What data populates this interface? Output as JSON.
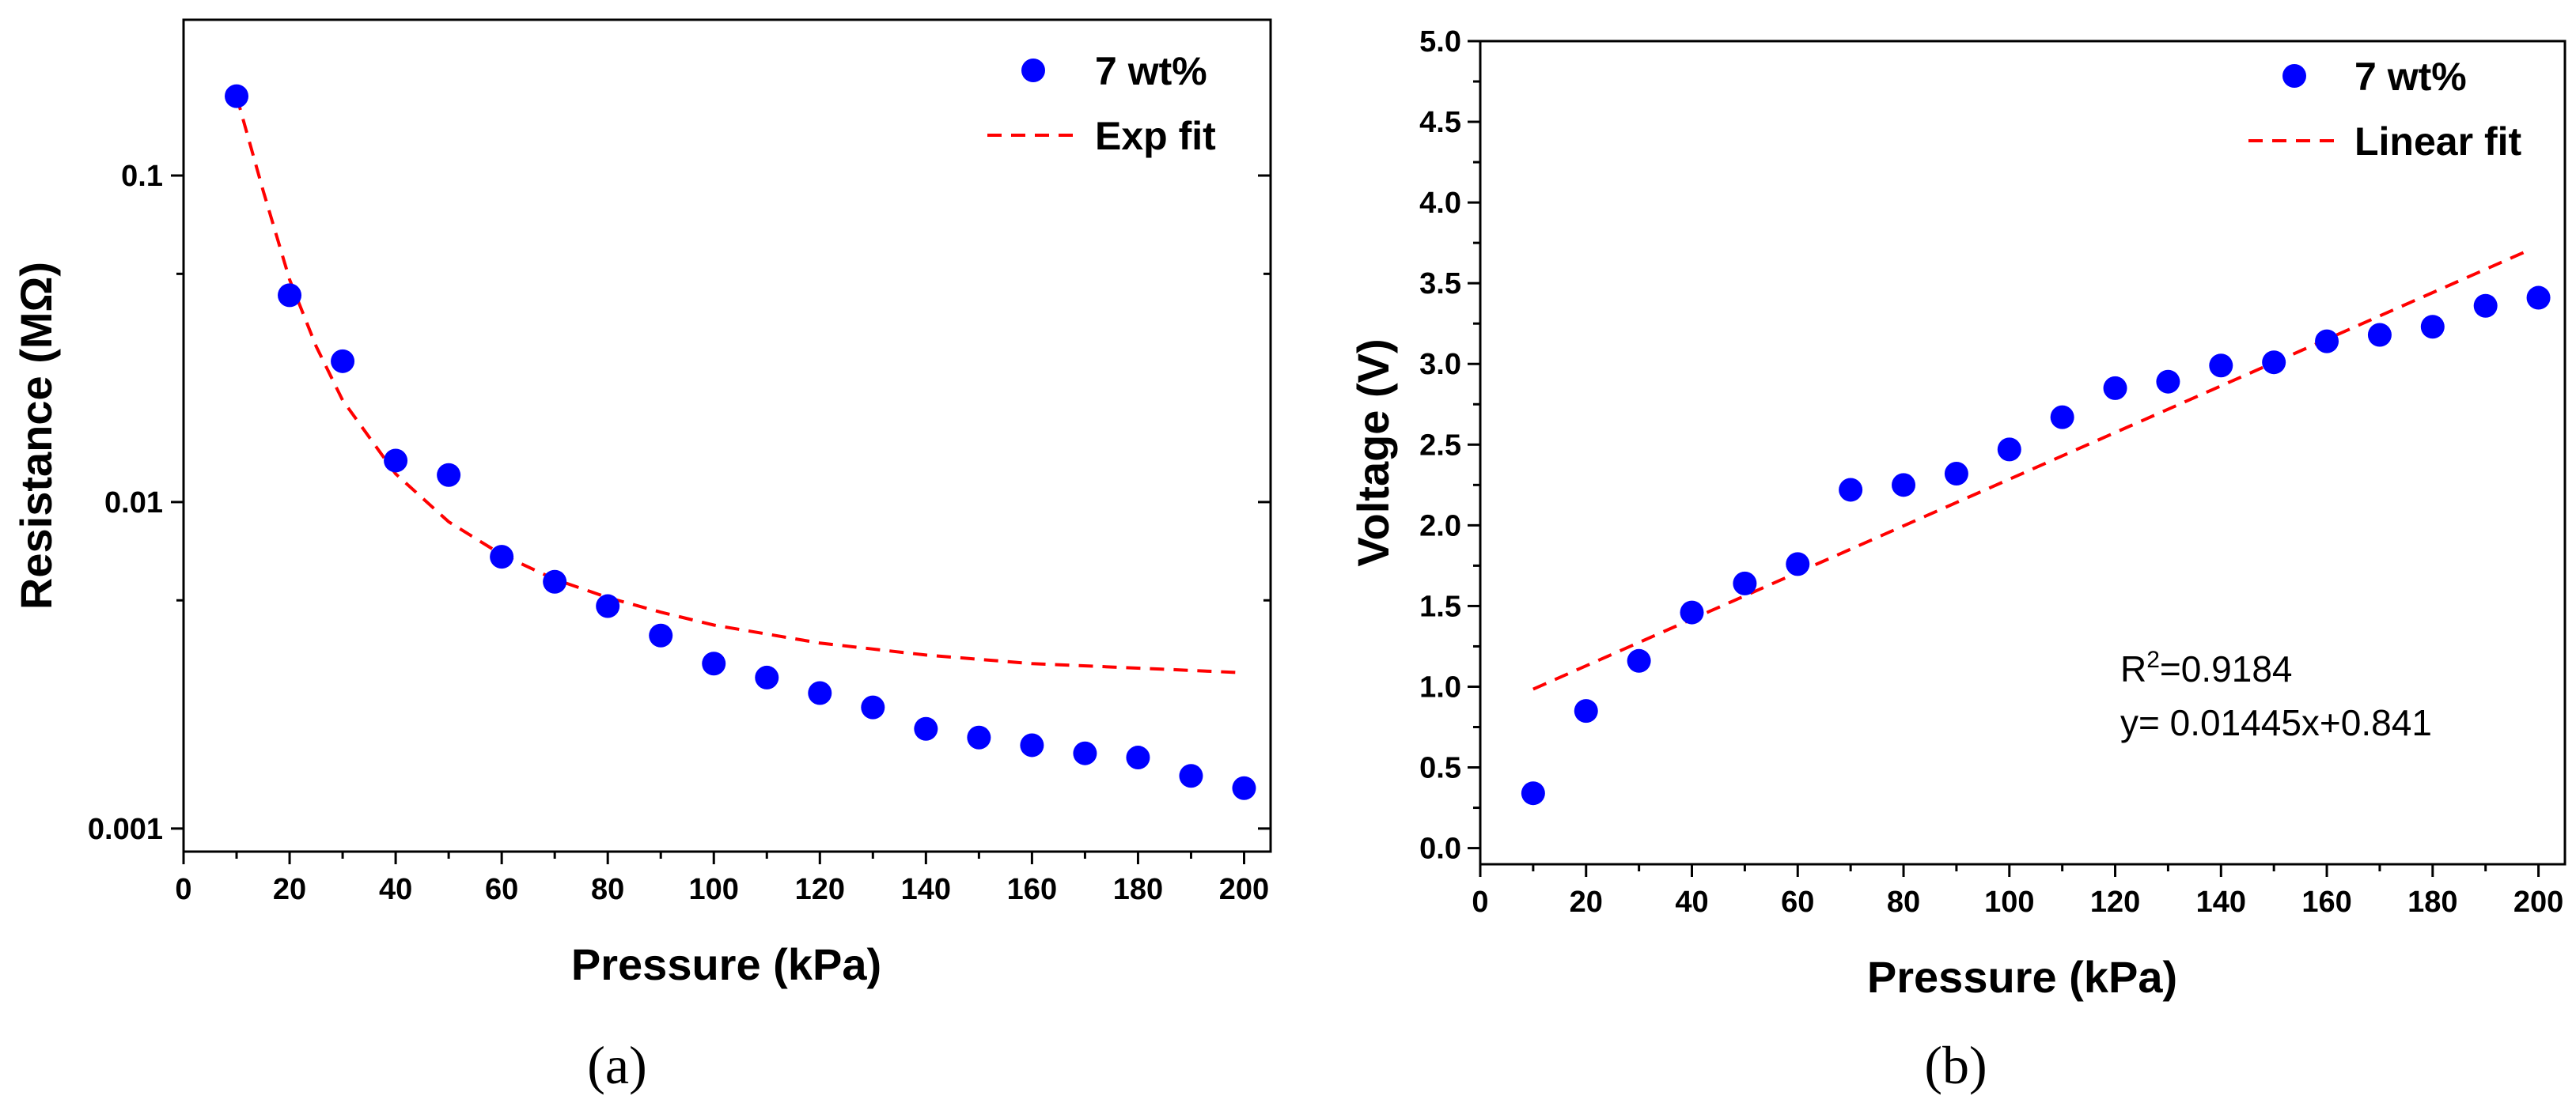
{
  "chart_data": [
    {
      "id": "a",
      "type": "scatter",
      "panel_label": "(a)",
      "xlabel": "Pressure (kPa)",
      "ylabel": "Resistance (MΩ)",
      "xscale": "linear",
      "yscale": "log",
      "xlim": [
        0,
        205
      ],
      "ylim": [
        0.00085,
        0.3
      ],
      "xticks": [
        0,
        20,
        40,
        60,
        80,
        100,
        120,
        140,
        160,
        180,
        200
      ],
      "xtick_labels": [
        "0",
        "20",
        "40",
        "60",
        "80",
        "100",
        "120",
        "140",
        "160",
        "180",
        "200"
      ],
      "yticks": [
        0.001,
        0.01,
        0.1
      ],
      "ytick_labels": [
        "0.001",
        "0.01",
        "0.1"
      ],
      "legend_position": "top-right",
      "series": [
        {
          "name": "7 wt%",
          "kind": "scatter",
          "color": "#0000ff",
          "x": [
            10,
            20,
            30,
            40,
            50,
            60,
            70,
            80,
            90,
            100,
            110,
            120,
            130,
            140,
            150,
            160,
            170,
            180,
            190,
            200
          ],
          "y": [
            0.175,
            0.043,
            0.027,
            0.0134,
            0.0121,
            0.0068,
            0.0057,
            0.0048,
            0.0039,
            0.0032,
            0.0029,
            0.0026,
            0.00235,
            0.00202,
            0.0019,
            0.0018,
            0.0017,
            0.00165,
            0.00145,
            0.00133
          ]
        },
        {
          "name": "Exp fit",
          "kind": "line",
          "style": "dashed",
          "color": "#ff0000",
          "x": [
            10,
            15,
            20,
            25,
            30,
            40,
            50,
            60,
            70,
            80,
            90,
            100,
            120,
            140,
            160,
            180,
            200
          ],
          "y": [
            0.175,
            0.09,
            0.048,
            0.03,
            0.0205,
            0.0122,
            0.0087,
            0.0069,
            0.0058,
            0.0051,
            0.0046,
            0.0042,
            0.0037,
            0.0034,
            0.0032,
            0.0031,
            0.003
          ]
        }
      ]
    },
    {
      "id": "b",
      "type": "scatter",
      "panel_label": "(b)",
      "xlabel": "Pressure (kPa)",
      "ylabel": "Voltage (V)",
      "xscale": "linear",
      "yscale": "linear",
      "xlim": [
        0,
        205
      ],
      "ylim": [
        -0.1,
        5.0
      ],
      "xticks": [
        0,
        20,
        40,
        60,
        80,
        100,
        120,
        140,
        160,
        180,
        200
      ],
      "xtick_labels": [
        "0",
        "20",
        "40",
        "60",
        "80",
        "100",
        "120",
        "140",
        "160",
        "180",
        "200"
      ],
      "yticks": [
        0.0,
        0.5,
        1.0,
        1.5,
        2.0,
        2.5,
        3.0,
        3.5,
        4.0,
        4.5,
        5.0
      ],
      "ytick_labels": [
        "0.0",
        "0.5",
        "1.0",
        "1.5",
        "2.0",
        "2.5",
        "3.0",
        "3.5",
        "4.0",
        "4.5",
        "5.0"
      ],
      "legend_position": "top-right",
      "annotation": {
        "r2_prefix": "R",
        "r2_sup": "2",
        "r2_value": "=0.9184",
        "equation": "y= 0.01445x+0.841"
      },
      "series": [
        {
          "name": "7 wt%",
          "kind": "scatter",
          "color": "#0000ff",
          "x": [
            10,
            20,
            30,
            40,
            50,
            60,
            70,
            80,
            90,
            100,
            110,
            120,
            130,
            140,
            150,
            160,
            170,
            180,
            190,
            200
          ],
          "y": [
            0.34,
            0.85,
            1.16,
            1.46,
            1.64,
            1.76,
            2.22,
            2.25,
            2.32,
            2.47,
            2.67,
            2.85,
            2.89,
            2.99,
            3.01,
            3.14,
            3.18,
            3.23,
            3.36,
            3.41
          ]
        },
        {
          "name": "Linear fit",
          "kind": "line",
          "style": "dashed",
          "color": "#ff0000",
          "x": [
            10,
            198
          ],
          "y": [
            0.985,
            3.702
          ]
        }
      ]
    }
  ]
}
